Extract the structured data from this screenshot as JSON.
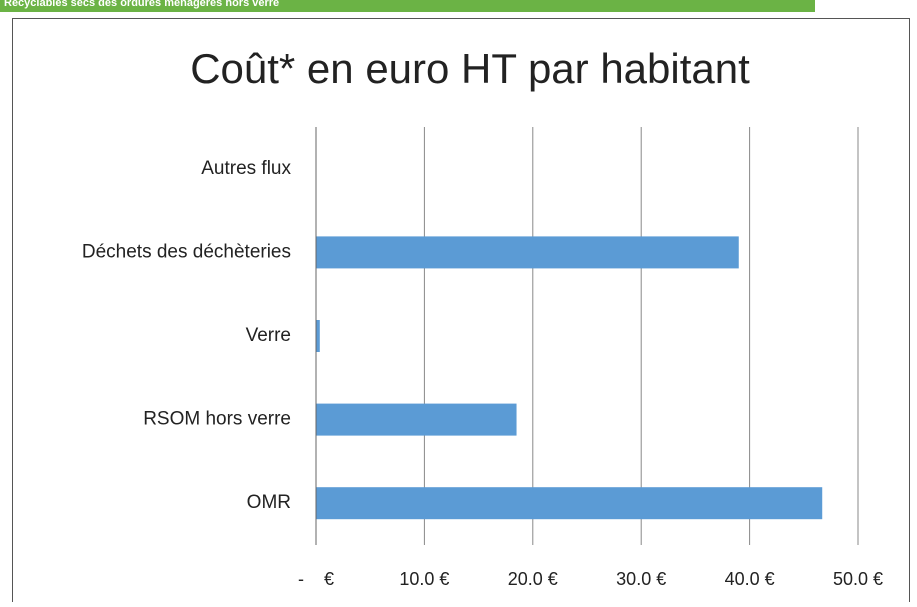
{
  "banner": "Recyclables secs des ordures ménagères hors verre",
  "chart_data": {
    "type": "bar",
    "orientation": "horizontal",
    "title": "Coût* en euro HT par habitant",
    "categories": [
      "Autres flux",
      "Déchets des déchèteries",
      "Verre",
      "RSOM hors verre",
      "OMR"
    ],
    "values": [
      0,
      39.0,
      0.35,
      18.5,
      46.7
    ],
    "color": "#5b9bd5",
    "xlim": [
      0,
      50
    ],
    "xticks": [
      {
        "value": 0,
        "label": "-    €"
      },
      {
        "value": 10,
        "label": "10.0 €"
      },
      {
        "value": 20,
        "label": "20.0 €"
      },
      {
        "value": 30,
        "label": "30.0 €"
      },
      {
        "value": 40,
        "label": "40.0 €"
      },
      {
        "value": 50,
        "label": "50.0 €"
      }
    ],
    "grid": true
  }
}
